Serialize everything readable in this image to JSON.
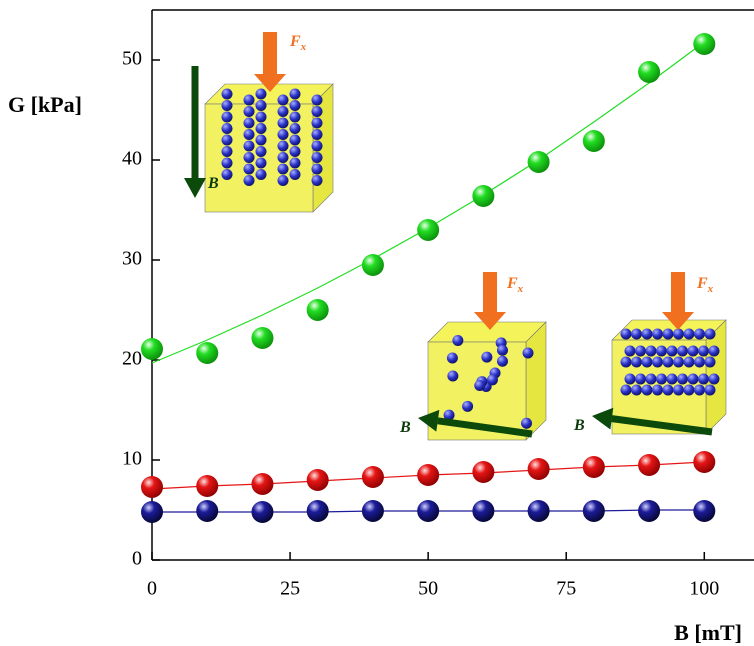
{
  "chart_data": {
    "type": "scatter",
    "x_label": "B [mT]",
    "y_label": "G [kPa]",
    "x": [
      0,
      10,
      20,
      30,
      40,
      50,
      60,
      70,
      80,
      90,
      100
    ],
    "series": [
      {
        "color": "#22dd22",
        "values": [
          21.1,
          20.7,
          22.2,
          25,
          29.5,
          33,
          36.4,
          39.8,
          41.9,
          48.8,
          51.6
        ],
        "fit": [
          19.7,
          22.0,
          24.5,
          27.2,
          30.1,
          33.2,
          36.5,
          40.0,
          43.8,
          47.7,
          51.8
        ]
      },
      {
        "color": "#e51515",
        "values": [
          7.3,
          7.4,
          7.6,
          8,
          8.3,
          8.5,
          8.8,
          9.1,
          9.3,
          9.5,
          9.8
        ],
        "fit": [
          7.1,
          7.4,
          7.6,
          7.9,
          8.2,
          8.5,
          8.7,
          9.0,
          9.3,
          9.5,
          9.8
        ]
      },
      {
        "color": "#1c1c9a",
        "values": [
          4.8,
          4.9,
          4.8,
          4.9,
          4.9,
          4.9,
          4.9,
          4.9,
          4.9,
          4.9,
          4.9
        ],
        "fit": [
          4.8,
          4.8,
          4.8,
          4.8,
          4.9,
          4.9,
          4.9,
          4.9,
          4.9,
          5.0,
          5.0
        ]
      }
    ],
    "xlim": [
      0,
      109
    ],
    "ylim": [
      0,
      55
    ],
    "xticks": [
      0,
      25,
      50,
      75,
      100
    ],
    "yticks": [
      0,
      10,
      20,
      30,
      40,
      50
    ],
    "insets": [
      {
        "force_label": "F",
        "force_sub": "x",
        "field_label": "B"
      },
      {
        "force_label": "F",
        "force_sub": "x",
        "field_label": "B"
      },
      {
        "force_label": "F",
        "force_sub": "x",
        "field_label": "B"
      }
    ]
  }
}
